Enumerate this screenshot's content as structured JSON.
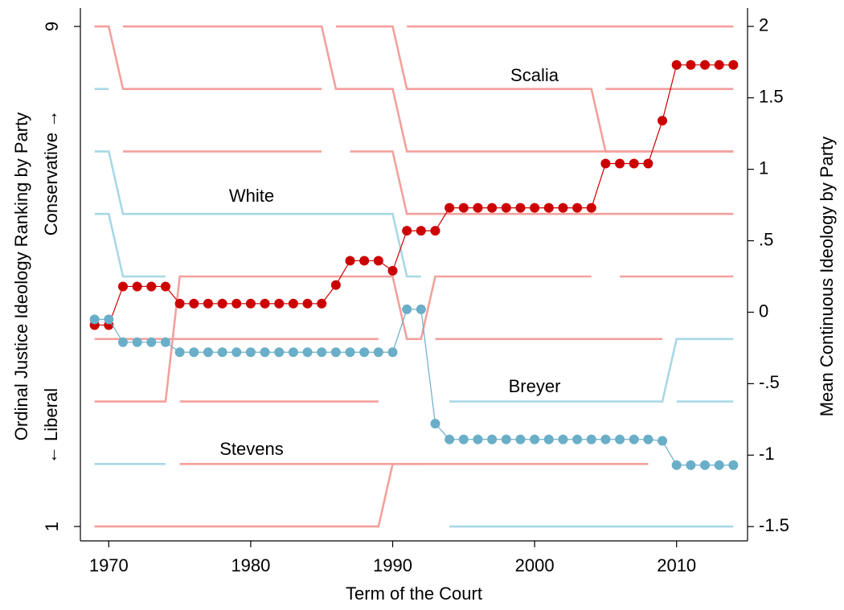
{
  "chart_data": {
    "type": "line",
    "x_label": "Term of the Court",
    "y_label": "Ordinal Justice Ideology Ranking by Party",
    "y_label_top": "Conservative →",
    "y_label_bottom": "← Liberal",
    "y2_label": "Mean Continuous Ideology by Party",
    "annotations": [
      "Scalia",
      "White",
      "Breyer",
      "Stevens"
    ],
    "xlim": [
      1968,
      2015
    ],
    "xticks": [
      1970,
      1980,
      1990,
      2000,
      2010
    ],
    "ylim": [
      0.77,
      9.23
    ],
    "yticks": [
      1,
      9
    ],
    "y2lim": [
      -1.6,
      2.1
    ],
    "y2ticks": [
      2,
      1.5,
      1,
      {
        "value": 0.5,
        "label": ".5"
      },
      0,
      {
        "value": -0.5,
        "label": "-.5"
      },
      -1,
      -1.5
    ],
    "x": [
      1969,
      1970,
      1971,
      1972,
      1973,
      1974,
      1975,
      1976,
      1977,
      1978,
      1979,
      1980,
      1981,
      1982,
      1983,
      1984,
      1985,
      1986,
      1987,
      1988,
      1989,
      1990,
      1991,
      1992,
      1993,
      1994,
      1995,
      1996,
      1997,
      1998,
      1999,
      2000,
      2001,
      2002,
      2003,
      2004,
      2005,
      2006,
      2007,
      2008,
      2009,
      2010,
      2011,
      2012,
      2013,
      2014
    ],
    "series": [
      {
        "color": "#cc0000",
        "axis": "y2",
        "values": [
          -0.09,
          -0.09,
          0.18,
          0.18,
          0.18,
          0.18,
          0.06,
          0.06,
          0.06,
          0.06,
          0.06,
          0.06,
          0.06,
          0.06,
          0.06,
          0.06,
          0.06,
          0.19,
          0.36,
          0.36,
          0.36,
          0.29,
          0.57,
          0.57,
          0.57,
          0.73,
          0.73,
          0.73,
          0.73,
          0.73,
          0.73,
          0.73,
          0.73,
          0.73,
          0.73,
          0.73,
          1.04,
          1.04,
          1.04,
          1.04,
          1.34,
          1.73,
          1.73,
          1.73,
          1.73,
          1.73
        ]
      },
      {
        "color": "#6aaec8",
        "axis": "y2",
        "values": [
          -0.05,
          -0.05,
          -0.21,
          -0.21,
          -0.21,
          -0.21,
          -0.28,
          -0.28,
          -0.28,
          -0.28,
          -0.28,
          -0.28,
          -0.28,
          -0.28,
          -0.28,
          -0.28,
          -0.28,
          -0.28,
          -0.28,
          -0.28,
          -0.28,
          -0.28,
          0.02,
          0.02,
          -0.78,
          -0.89,
          -0.89,
          -0.89,
          -0.89,
          -0.89,
          -0.89,
          -0.89,
          -0.89,
          -0.89,
          -0.89,
          -0.89,
          -0.89,
          -0.89,
          -0.89,
          -0.89,
          -0.9,
          -1.07,
          -1.07,
          -1.07,
          -1.07,
          -1.07
        ]
      }
    ],
    "rank_tracks": [
      {
        "color": "#f4a09c",
        "x": [
          1969,
          1970,
          1971,
          1985
        ],
        "values": [
          9,
          9,
          8,
          8
        ]
      },
      {
        "color": "#f4a09c",
        "x": [
          1971,
          1985,
          1986,
          1990,
          1991,
          2014
        ],
        "values": [
          9,
          9,
          8,
          8,
          7,
          7
        ]
      },
      {
        "color": "#f4a09c",
        "x": [
          1986,
          1990,
          1991,
          2004,
          2005,
          2014
        ],
        "values": [
          9,
          9,
          8,
          8,
          7,
          7
        ]
      },
      {
        "color": "#f4a09c",
        "x": [
          1991,
          2014
        ],
        "values": [
          9,
          9
        ]
      },
      {
        "color": "#f4a09c",
        "x": [
          2005,
          2014
        ],
        "values": [
          8,
          8
        ]
      },
      {
        "color": "#f4a09c",
        "x": [
          1971,
          1985,
          1986,
          1987,
          1990,
          1991,
          2014
        ],
        "values": [
          7,
          7,
          null,
          7,
          7,
          6,
          6
        ]
      },
      {
        "color": "#a8d8e6",
        "x": [
          1969,
          1970
        ],
        "values": [
          8,
          8
        ]
      },
      {
        "color": "#a8d8e6",
        "x": [
          1969,
          1970,
          1971,
          1990,
          1991,
          1992
        ],
        "values": [
          7,
          7,
          6,
          6,
          5,
          5
        ]
      },
      {
        "color": "#a8d8e6",
        "x": [
          1969,
          1970,
          1971,
          1974
        ],
        "values": [
          6,
          6,
          5,
          5
        ]
      },
      {
        "color": "#f4a09c",
        "x": [
          1969,
          1974,
          1975,
          1990,
          1991,
          1992,
          1993,
          2004,
          2005,
          2006,
          2014
        ],
        "values": [
          3,
          3,
          5,
          5,
          4,
          4,
          5,
          5,
          null,
          5,
          5
        ]
      },
      {
        "color": "#f4a09c",
        "x": [
          1969,
          1989
        ],
        "values": [
          4,
          4
        ]
      },
      {
        "color": "#f4a09c",
        "x": [
          1993,
          2009
        ],
        "values": [
          4,
          4
        ]
      },
      {
        "color": "#a8d8e6",
        "x": [
          1994,
          2009,
          2010,
          2014
        ],
        "values": [
          3,
          3,
          4,
          4
        ]
      },
      {
        "color": "#a8d8e6",
        "x": [
          2010,
          2014
        ],
        "values": [
          3,
          3
        ]
      },
      {
        "color": "#a8d8e6",
        "x": [
          1969,
          1974
        ],
        "values": [
          2,
          2
        ]
      },
      {
        "color": "#f4a09c",
        "x": [
          1975,
          1989
        ],
        "values": [
          3,
          3
        ]
      },
      {
        "color": "#f4a09c",
        "x": [
          1975,
          2008
        ],
        "values": [
          2,
          2
        ]
      },
      {
        "color": "#f4a09c",
        "x": [
          1969,
          1989,
          1990,
          1992
        ],
        "values": [
          1,
          1,
          2,
          2
        ]
      },
      {
        "color": "#a8d8e6",
        "x": [
          1994,
          2014
        ],
        "values": [
          1,
          1
        ]
      }
    ]
  }
}
